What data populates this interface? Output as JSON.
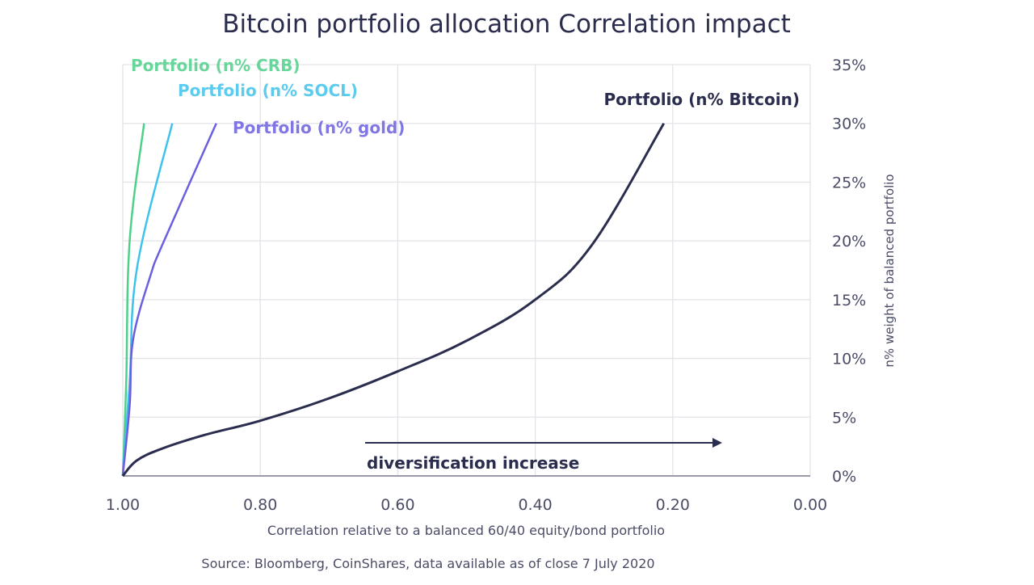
{
  "chart_data": {
    "type": "line",
    "title": "Bitcoin portfolio allocation Correlation impact",
    "xlabel": "Correlation relative to a balanced 60/40 equity/bond portfolio",
    "ylabel": "n% weight of balanced portfolio",
    "source": "Source: Bloomberg, CoinShares, data available as of close 7 July 2020",
    "annotation": "diversification increase",
    "xlim": [
      1.0,
      0.0
    ],
    "ylim": [
      0,
      35
    ],
    "x_reversed": true,
    "grid": true,
    "x_ticks": [
      "1.00",
      "0.80",
      "0.60",
      "0.40",
      "0.20",
      "0.00"
    ],
    "y_ticks": [
      "0%",
      "5%",
      "10%",
      "15%",
      "20%",
      "25%",
      "30%",
      "35%"
    ],
    "series": [
      {
        "name": "Portfolio (n% CRB)",
        "color": "#4fd08a",
        "points": [
          [
            1.0,
            0
          ],
          [
            0.995,
            8
          ],
          [
            0.99,
            20
          ],
          [
            0.969,
            30
          ]
        ]
      },
      {
        "name": "Portfolio (n% SOCL)",
        "color": "#3fc3ec",
        "points": [
          [
            1.0,
            0
          ],
          [
            0.99,
            8
          ],
          [
            0.979,
            17.8
          ],
          [
            0.928,
            30
          ]
        ]
      },
      {
        "name": "Portfolio (n% gold)",
        "color": "#6b5fe0",
        "points": [
          [
            1.0,
            0
          ],
          [
            0.99,
            6
          ],
          [
            0.985,
            11.6
          ],
          [
            0.96,
            17
          ],
          [
            0.94,
            20
          ],
          [
            0.864,
            30
          ]
        ]
      },
      {
        "name": "Portfolio (n% Bitcoin)",
        "color": "#2b2d4e",
        "points": [
          [
            1.0,
            0
          ],
          [
            0.98,
            1.3
          ],
          [
            0.944,
            2.3
          ],
          [
            0.88,
            3.5
          ],
          [
            0.8,
            4.7
          ],
          [
            0.7,
            6.6
          ],
          [
            0.6,
            8.9
          ],
          [
            0.5,
            11.5
          ],
          [
            0.4,
            15
          ],
          [
            0.317,
            19.7
          ],
          [
            0.213,
            30
          ]
        ]
      }
    ]
  }
}
